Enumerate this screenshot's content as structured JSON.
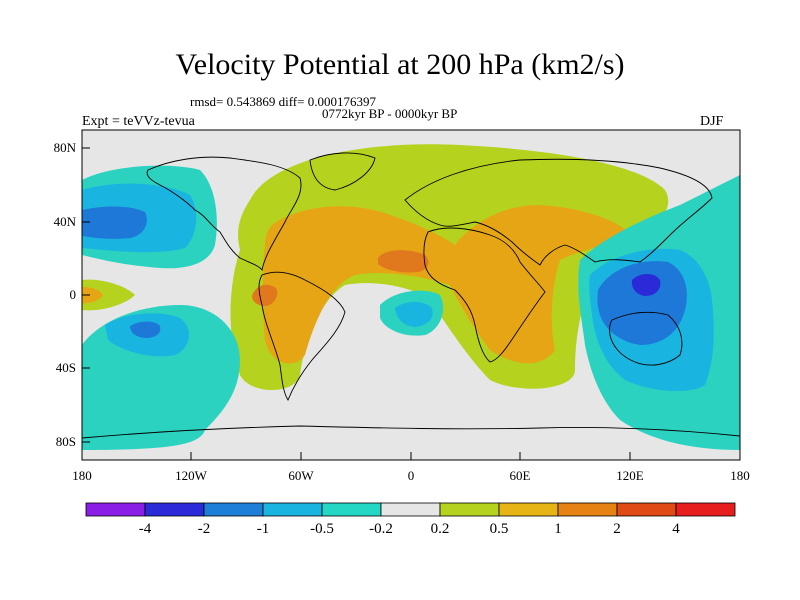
{
  "title": "Velocity Potential at 200 hPa (km2/s)",
  "stats_line": "rmsd= 0.543869 diff= 0.000176397",
  "period_line": "0772kyr BP - 0000kyr BP",
  "experiment_label": "Expt = teVVz-tevua",
  "season_label": "DJF",
  "map": {
    "y_ticks": [
      "80N",
      "40N",
      "0",
      "40S",
      "80S"
    ],
    "x_ticks": [
      "180",
      "120W",
      "60W",
      "0",
      "60E",
      "120E",
      "180"
    ]
  },
  "colorbar": {
    "labels": [
      "-4",
      "-2",
      "-1",
      "-0.5",
      "-0.2",
      "0.2",
      "0.5",
      "1",
      "2",
      "4"
    ],
    "colors": [
      "#8a1ee6",
      "#2a2ad8",
      "#1e7fd8",
      "#1ab4e0",
      "#24d6c4",
      "#e6e6e6",
      "#b4d21e",
      "#e6b414",
      "#e68214",
      "#e04a14",
      "#e61e1e"
    ]
  },
  "field_colors": {
    "neutral": "#e6e6e6",
    "pos_weak": "#b4d21e",
    "pos_mid": "#e6a514",
    "pos_strong": "#e0781e",
    "neg_weak": "#2cd2c0",
    "neg_mid": "#1ab4e0",
    "neg_strong": "#1e78d8",
    "neg_core": "#2a2ad8"
  }
}
